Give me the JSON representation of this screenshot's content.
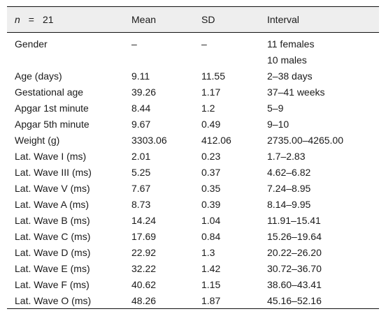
{
  "header": {
    "col1_var": "n",
    "col1_eq": "=",
    "col1_value": "21",
    "col2": "Mean",
    "col3": "SD",
    "col4": "Interval"
  },
  "rows": [
    {
      "label": "Gender",
      "mean": "–",
      "sd": "–",
      "interval": "11 females"
    },
    {
      "label": "",
      "mean": "",
      "sd": "",
      "interval": "10 males"
    },
    {
      "label": "Age (days)",
      "mean": "9.11",
      "sd": "11.55",
      "interval": "2–38 days"
    },
    {
      "label": "Gestational age",
      "mean": "39.26",
      "sd": "1.17",
      "interval": "37–41 weeks"
    },
    {
      "label": "Apgar 1st minute",
      "mean": "8.44",
      "sd": "1.2",
      "interval": "5–9"
    },
    {
      "label": "Apgar 5th minute",
      "mean": "9.67",
      "sd": "0.49",
      "interval": "9–10"
    },
    {
      "label": "Weight (g)",
      "mean": "3303.06",
      "sd": "412.06",
      "interval": "2735.00–4265.00"
    },
    {
      "label": "Lat. Wave I (ms)",
      "mean": "2.01",
      "sd": "0.23",
      "interval": "1.7–2.83"
    },
    {
      "label": "Lat. Wave III (ms)",
      "mean": "5.25",
      "sd": "0.37",
      "interval": "4.62–6.82"
    },
    {
      "label": "Lat. Wave V (ms)",
      "mean": "7.67",
      "sd": "0.35",
      "interval": "7.24–8.95"
    },
    {
      "label": "Lat. Wave A (ms)",
      "mean": "8.73",
      "sd": "0.39",
      "interval": "8.14–9.95"
    },
    {
      "label": "Lat. Wave B (ms)",
      "mean": "14.24",
      "sd": "1.04",
      "interval": "11.91–15.41"
    },
    {
      "label": "Lat. Wave C (ms)",
      "mean": "17.69",
      "sd": "0.84",
      "interval": "15.26–19.64"
    },
    {
      "label": "Lat. Wave D (ms)",
      "mean": "22.92",
      "sd": "1.3",
      "interval": "20.22–26.20"
    },
    {
      "label": "Lat. Wave E (ms)",
      "mean": "32.22",
      "sd": "1.42",
      "interval": "30.72–36.70"
    },
    {
      "label": "Lat. Wave F (ms)",
      "mean": "40.62",
      "sd": "1.15",
      "interval": "38.60–43.41"
    },
    {
      "label": "Lat. Wave O (ms)",
      "mean": "48.26",
      "sd": "1.87",
      "interval": "45.16–52.16"
    }
  ]
}
